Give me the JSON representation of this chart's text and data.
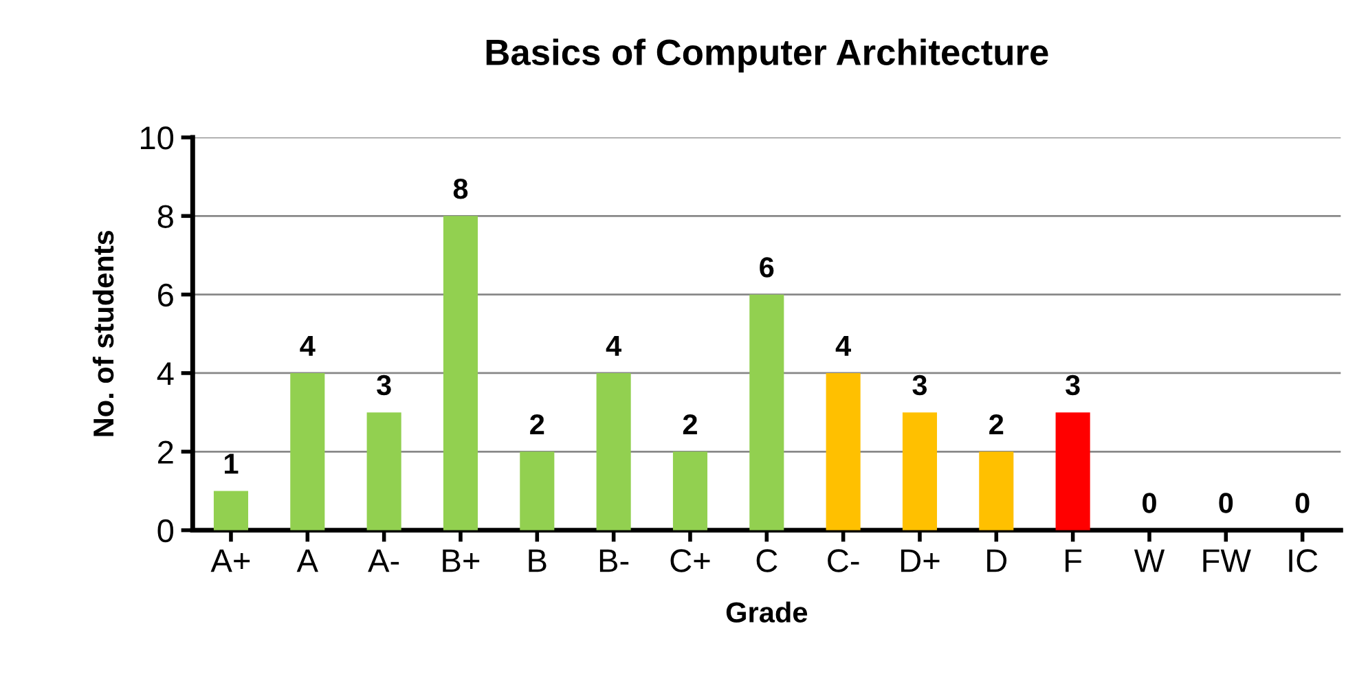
{
  "chart_data": {
    "type": "bar",
    "title": "Basics of Computer Architecture",
    "xlabel": "Grade",
    "ylabel": "No. of students",
    "categories": [
      "A+",
      "A",
      "A-",
      "B+",
      "B",
      "B-",
      "C+",
      "C",
      "C-",
      "D+",
      "D",
      "F",
      "W",
      "FW",
      "IC"
    ],
    "values": [
      1,
      4,
      3,
      8,
      2,
      4,
      2,
      6,
      4,
      3,
      2,
      3,
      0,
      0,
      0
    ],
    "colors": [
      "#92d050",
      "#92d050",
      "#92d050",
      "#92d050",
      "#92d050",
      "#92d050",
      "#92d050",
      "#92d050",
      "#ffc000",
      "#ffc000",
      "#ffc000",
      "#ff0000",
      "#92d050",
      "#92d050",
      "#92d050"
    ],
    "ylim": [
      0,
      10
    ],
    "yticks": [
      0,
      2,
      4,
      6,
      8,
      10
    ],
    "grid": "y",
    "data_labels": true
  }
}
